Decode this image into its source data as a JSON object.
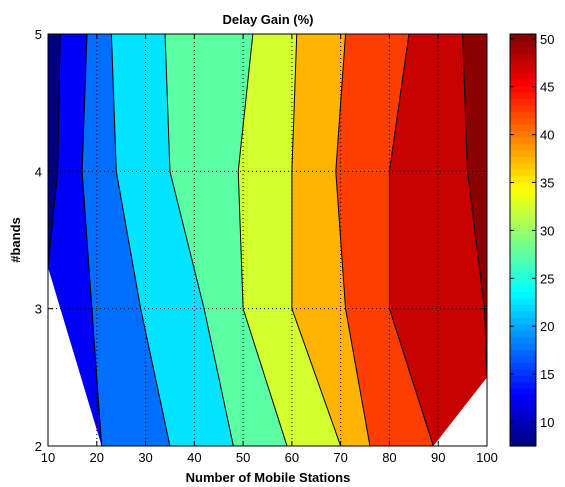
{
  "chart_data": {
    "type": "contour",
    "title": "Delay Gain (%)",
    "xlabel": "Number of Mobile Stations",
    "ylabel": "#bands",
    "xlim": [
      10,
      100
    ],
    "ylim": [
      2,
      5
    ],
    "x_ticks": [
      10,
      20,
      30,
      40,
      50,
      60,
      70,
      80,
      90,
      100
    ],
    "y_ticks": [
      2,
      3,
      4,
      5
    ],
    "grid": true,
    "colorbar": {
      "range": [
        7.5,
        50.5
      ],
      "ticks": [
        10,
        15,
        20,
        25,
        30,
        35,
        40,
        45,
        50
      ],
      "colormap": "jet"
    },
    "contour_levels": [
      10,
      15,
      20,
      25,
      30,
      35,
      40,
      45
    ],
    "contour_lines": [
      {
        "level": 10,
        "points": [
          [
            10,
            3.3
          ],
          [
            12,
            4.0
          ],
          [
            12.5,
            5.0
          ]
        ],
        "bottom": [
          14,
          2.0
        ]
      },
      {
        "level": 15,
        "points": [
          [
            21,
            2.0
          ],
          [
            19,
            3.0
          ],
          [
            17,
            4.0
          ],
          [
            18,
            5.0
          ]
        ]
      },
      {
        "level": 20,
        "points": [
          [
            35,
            2.0
          ],
          [
            29,
            3.0
          ],
          [
            24,
            4.0
          ],
          [
            23,
            5.0
          ]
        ]
      },
      {
        "level": 25,
        "points": [
          [
            48,
            2.0
          ],
          [
            42,
            3.0
          ],
          [
            35,
            4.0
          ],
          [
            34,
            5.0
          ]
        ]
      },
      {
        "level": 30,
        "points": [
          [
            59,
            2.0
          ],
          [
            50,
            3.0
          ],
          [
            49,
            4.0
          ],
          [
            52,
            5.0
          ]
        ]
      },
      {
        "level": 35,
        "points": [
          [
            70,
            2.0
          ],
          [
            60,
            3.0
          ],
          [
            60,
            4.0
          ],
          [
            61,
            5.0
          ]
        ]
      },
      {
        "level": 40,
        "points": [
          [
            76,
            2.0
          ],
          [
            71,
            3.0
          ],
          [
            69,
            4.0
          ],
          [
            71,
            5.0
          ]
        ]
      },
      {
        "level": 45,
        "points": [
          [
            89,
            2.0
          ],
          [
            80,
            3.0
          ],
          [
            80,
            4.0
          ],
          [
            84,
            5.0
          ]
        ]
      },
      {
        "level": 50,
        "points": [
          [
            100,
            2.5
          ],
          [
            99.5,
            3.0
          ],
          [
            96,
            4.0
          ],
          [
            95,
            5.0
          ]
        ]
      }
    ]
  }
}
